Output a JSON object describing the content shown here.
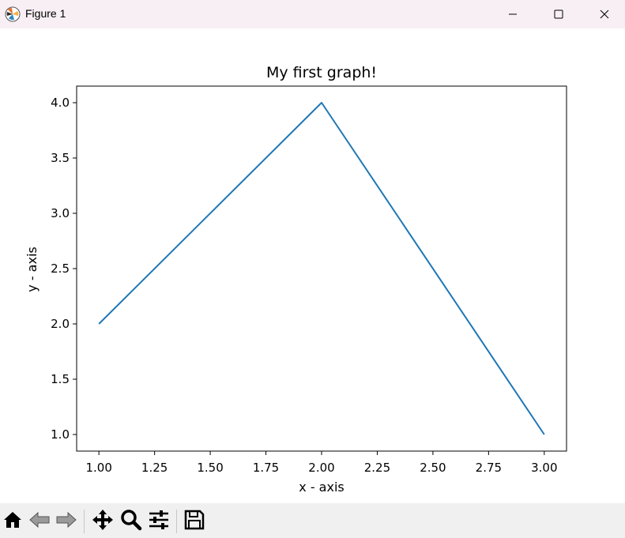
{
  "window": {
    "title": "Figure 1",
    "controls": {
      "minimize_icon": "minimize-icon",
      "maximize_icon": "maximize-icon",
      "close_icon": "close-icon"
    }
  },
  "toolbar": {
    "items": [
      {
        "name": "home",
        "icon": "home-icon"
      },
      {
        "name": "back",
        "icon": "back-arrow-icon"
      },
      {
        "name": "forward",
        "icon": "forward-arrow-icon"
      },
      {
        "name": "pan",
        "icon": "move-icon"
      },
      {
        "name": "zoom",
        "icon": "zoom-icon"
      },
      {
        "name": "configure-subplots",
        "icon": "sliders-icon"
      },
      {
        "name": "save",
        "icon": "save-icon"
      }
    ]
  },
  "chart_data": {
    "type": "line",
    "title": "My first graph!",
    "xlabel": "x - axis",
    "ylabel": "y - axis",
    "x": [
      1,
      2,
      3
    ],
    "series": [
      {
        "values": [
          2,
          4,
          1
        ],
        "color": "#1f77b4"
      }
    ],
    "xlim": [
      0.9,
      3.1
    ],
    "ylim": [
      0.85,
      4.15
    ],
    "xticks": [
      "1.00",
      "1.25",
      "1.50",
      "1.75",
      "2.00",
      "2.25",
      "2.50",
      "2.75",
      "3.00"
    ],
    "yticks": [
      "1.0",
      "1.5",
      "2.0",
      "2.5",
      "3.0",
      "3.5",
      "4.0"
    ],
    "grid": false,
    "legend": "none"
  }
}
